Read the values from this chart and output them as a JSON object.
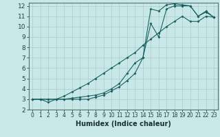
{
  "xlabel": "Humidex (Indice chaleur)",
  "bg_color": "#c8e8e8",
  "grid_color": "#b0d0d0",
  "line_color": "#1a6060",
  "xlim": [
    -0.5,
    23.5
  ],
  "ylim": [
    2,
    12.3
  ],
  "xticks": [
    0,
    1,
    2,
    3,
    4,
    5,
    6,
    7,
    8,
    9,
    10,
    11,
    12,
    13,
    14,
    15,
    16,
    17,
    18,
    19,
    20,
    21,
    22,
    23
  ],
  "yticks": [
    2,
    3,
    4,
    5,
    6,
    7,
    8,
    9,
    10,
    11,
    12
  ],
  "line1_x": [
    0,
    1,
    2,
    3,
    4,
    5,
    6,
    7,
    8,
    9,
    10,
    11,
    12,
    13,
    14,
    15,
    16,
    17,
    18,
    19,
    20,
    21,
    22,
    23
  ],
  "line1_y": [
    3,
    3,
    3,
    3,
    3,
    3,
    3,
    3,
    3.2,
    3.4,
    3.8,
    4.2,
    4.8,
    5.5,
    7,
    11.7,
    11.5,
    12.1,
    12.2,
    12.1,
    12.0,
    11.0,
    11.5,
    10.9
  ],
  "line2_x": [
    0,
    1,
    2,
    3,
    4,
    5,
    6,
    7,
    8,
    9,
    10,
    11,
    12,
    13,
    14,
    15,
    16,
    17,
    18,
    19,
    20,
    21,
    22,
    23
  ],
  "line2_y": [
    3,
    3,
    2.7,
    3,
    3,
    3.1,
    3.2,
    3.3,
    3.4,
    3.6,
    4.0,
    4.5,
    5.5,
    6.5,
    7.0,
    10.3,
    9.0,
    11.7,
    12.0,
    12.0,
    12.0,
    11.0,
    11.4,
    10.9
  ],
  "line3_x": [
    0,
    1,
    2,
    3,
    4,
    5,
    6,
    7,
    8,
    9,
    10,
    11,
    12,
    13,
    14,
    15,
    16,
    17,
    18,
    19,
    20,
    21,
    22,
    23
  ],
  "line3_y": [
    3,
    3,
    3,
    3,
    3.3,
    3.7,
    4.1,
    4.5,
    5.0,
    5.5,
    6.0,
    6.5,
    7.0,
    7.5,
    8.2,
    8.8,
    9.4,
    10.0,
    10.5,
    11.0,
    10.5,
    10.5,
    11.0,
    10.9
  ]
}
